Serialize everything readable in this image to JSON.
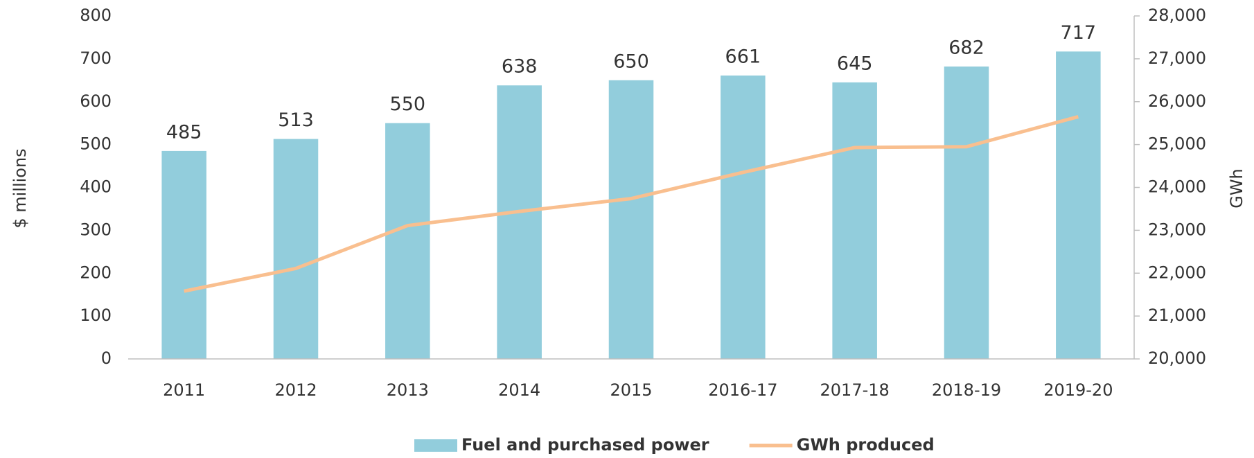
{
  "chart_data": {
    "type": "bar",
    "categories": [
      "2011",
      "2012",
      "2013",
      "2014",
      "2015",
      "2016-17",
      "2017-18",
      "2018-19",
      "2019-20"
    ],
    "series": [
      {
        "name": "Fuel and purchased power",
        "type": "bar",
        "color": "#92cddc",
        "values": [
          485,
          513,
          550,
          638,
          650,
          661,
          645,
          682,
          717
        ]
      },
      {
        "name": "GWh produced",
        "type": "line",
        "axis": "y2",
        "color": "#f9bf8f",
        "values": [
          21580,
          22110,
          23110,
          23440,
          23740,
          24350,
          24930,
          24950,
          25650
        ]
      }
    ],
    "ylabel": "$ millions",
    "y2label": "GWh",
    "ylim": [
      0,
      800
    ],
    "yticks": [
      0,
      100,
      200,
      300,
      400,
      500,
      600,
      700,
      800
    ],
    "y2lim": [
      20000,
      28000
    ],
    "y2ticks": [
      {
        "value": 20000,
        "label": "20,000"
      },
      {
        "value": 21000,
        "label": "21,000"
      },
      {
        "value": 22000,
        "label": "22,000"
      },
      {
        "value": 23000,
        "label": "23,000"
      },
      {
        "value": 24000,
        "label": "24,000"
      },
      {
        "value": 25000,
        "label": "25,000"
      },
      {
        "value": 26000,
        "label": "26,000"
      },
      {
        "value": 27000,
        "label": "27,000"
      },
      {
        "value": 28000,
        "label": "28,000"
      }
    ],
    "legend": "bottom",
    "data_labels": true
  }
}
